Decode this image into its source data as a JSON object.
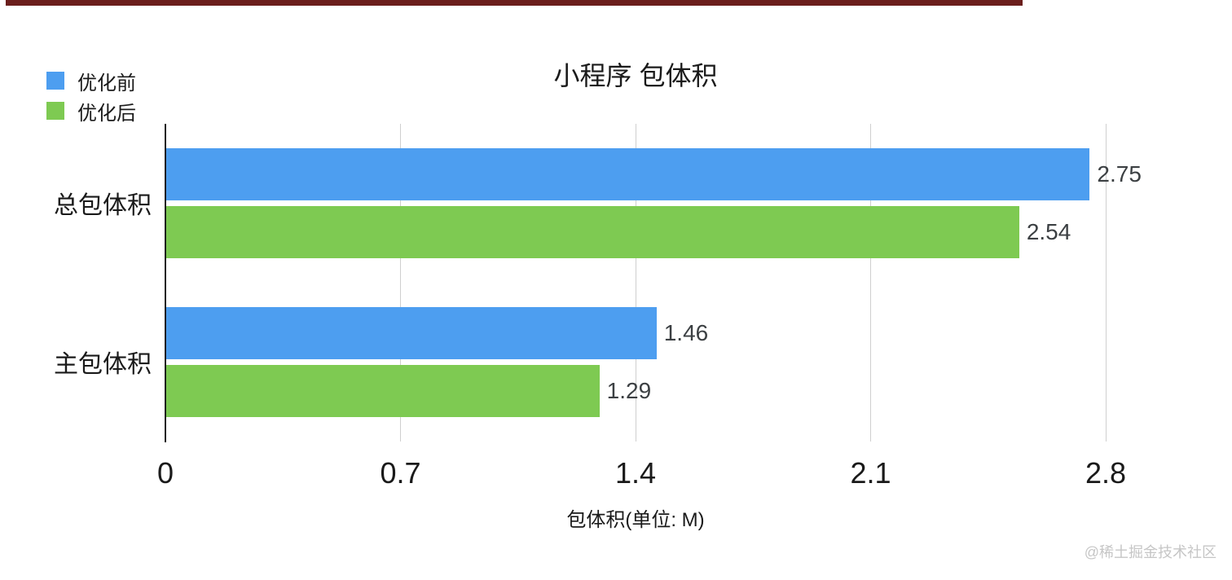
{
  "chart_data": {
    "type": "bar",
    "orientation": "horizontal",
    "title": "小程序 包体积",
    "categories": [
      "总包体积",
      "主包体积"
    ],
    "series": [
      {
        "name": "优化前",
        "color": "#4D9EF0",
        "values": [
          2.75,
          1.46
        ],
        "value_labels": [
          "2.75",
          "1.46"
        ]
      },
      {
        "name": "优化后",
        "color": "#7ECA52",
        "values": [
          2.54,
          1.29
        ],
        "value_labels": [
          "2.54",
          "1.29"
        ]
      }
    ],
    "xlabel": "包体积(单位: M)",
    "xlim": [
      0,
      2.8
    ],
    "xtick_labels": [
      "0",
      "0.7",
      "1.4",
      "2.1",
      "2.8"
    ],
    "grid": true,
    "legend_position": "top-left",
    "colors": {
      "gridline": "#CFCFCF",
      "axis_line": "#1F1F1F",
      "text": "#1A1A1A",
      "value_label_text": "#3C4043"
    }
  },
  "watermark": {
    "text": "@稀土掘金技术社区",
    "color": "#C6C6C6"
  },
  "decorations": {
    "top_bar_color": "#6B1E1C"
  }
}
